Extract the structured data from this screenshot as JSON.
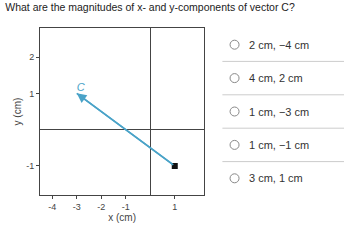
{
  "chart_data": {
    "type": "line",
    "title": "What are the magnitudes of x- and y-components of vector C?",
    "xlabel": "x (cm)",
    "ylabel": "y (cm)",
    "series": [
      {
        "name": "C",
        "color": "#4aa3c8",
        "marker": "arrow",
        "x": [
          -3,
          1
        ],
        "values": [
          1,
          -1
        ]
      },
      {
        "type": "scatter",
        "marker": "square",
        "color": "#111111",
        "x": [
          1
        ],
        "values": [
          -1
        ]
      }
    ],
    "xlim": [
      -4.5,
      2.2
    ],
    "ylim": [
      -1.8,
      2.8
    ],
    "xticks": [
      -4,
      -3,
      -2,
      -1,
      1
    ],
    "yticks": [
      -1,
      1,
      2
    ],
    "grid": false,
    "annotations": [
      "2 cm, −4 cm",
      "4 cm, 2 cm",
      "1 cm, −3 cm",
      "1 cm, −1 cm",
      "3 cm, 1 cm"
    ]
  }
}
